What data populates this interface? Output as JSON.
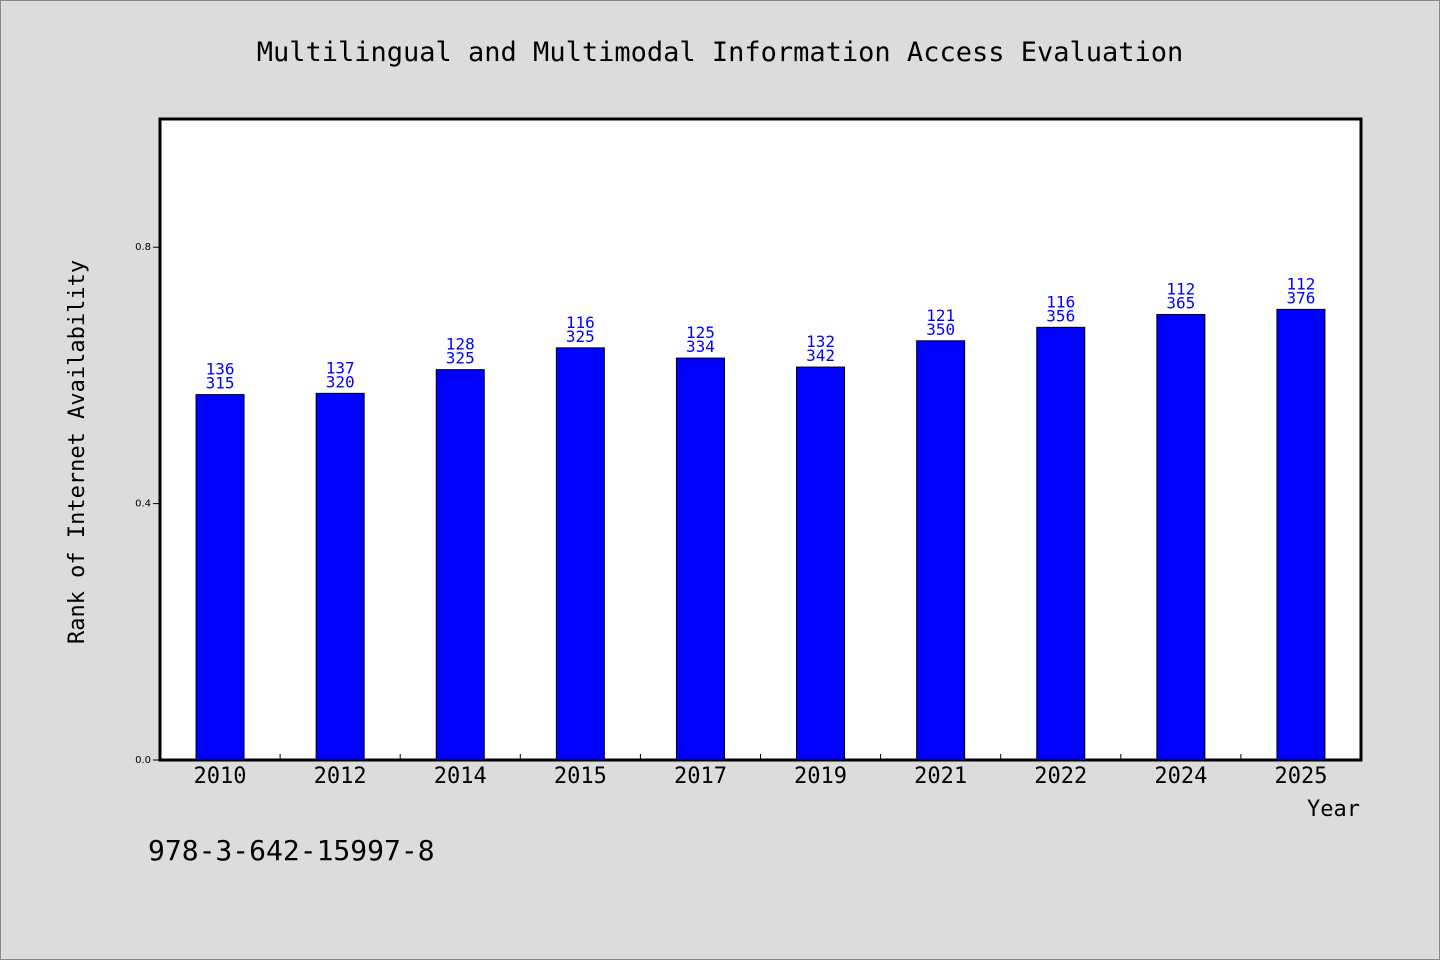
{
  "chart_data": {
    "type": "bar",
    "title": "Multilingual and Multimodal Information Access Evaluation",
    "xlabel": "Year",
    "ylabel": "Rank of Internet Availability",
    "ylim": [
      0.0,
      1.0
    ],
    "yticks": [
      0.0,
      0.4,
      0.8
    ],
    "ytick_labels": [
      "0.0",
      "0.4",
      "0.8"
    ],
    "grid": false,
    "bar_color": "#0000ff",
    "label_color": "#0000ff",
    "categories": [
      "2010",
      "2012",
      "2014",
      "2015",
      "2017",
      "2019",
      "2021",
      "2022",
      "2024",
      "2025"
    ],
    "values": [
      0.57,
      0.572,
      0.609,
      0.643,
      0.627,
      0.613,
      0.654,
      0.675,
      0.695,
      0.703
    ],
    "labels_top": [
      "136",
      "137",
      "128",
      "116",
      "125",
      "132",
      "121",
      "116",
      "112",
      "112"
    ],
    "labels_bottom": [
      "315",
      "320",
      "325",
      "325",
      "334",
      "342",
      "350",
      "356",
      "365",
      "376"
    ]
  },
  "footer": {
    "isbn": "978-3-642-15997-8"
  }
}
